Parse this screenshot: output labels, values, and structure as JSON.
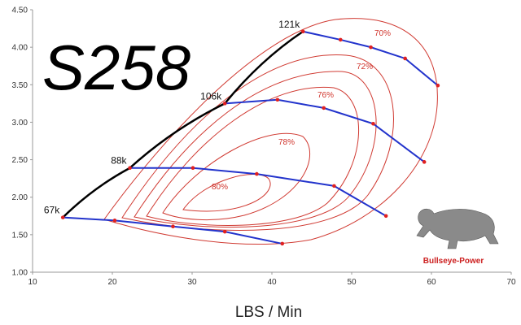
{
  "chart_data": {
    "type": "compressor-map",
    "title": "S258",
    "x_label": "LBS / Min",
    "logo_text": "Bullseye-Power",
    "xlim": [
      10,
      70
    ],
    "xticks": [
      10,
      20,
      30,
      40,
      50,
      60,
      70
    ],
    "ylim": [
      1,
      4.5
    ],
    "yticks": [
      {
        "value": 1,
        "label": "1.00"
      },
      {
        "value": 1.5,
        "label": "1.50"
      },
      {
        "value": 2,
        "label": "2.00"
      },
      {
        "value": 2.5,
        "label": "2.50"
      },
      {
        "value": 3,
        "label": "3.00"
      },
      {
        "value": 3.5,
        "label": "3.50"
      },
      {
        "value": 4,
        "label": "4.00"
      },
      {
        "value": 4.5,
        "label": "4.50"
      }
    ],
    "line_color": "#2233cc",
    "point_color": "#e02020",
    "surge_color": "#000000",
    "series": [
      {
        "name": "67k",
        "x": [
          13.8,
          20.3,
          27.6,
          34.1,
          41.3
        ],
        "y": [
          1.73,
          1.69,
          1.61,
          1.54,
          1.38
        ]
      },
      {
        "name": "88k",
        "x": [
          22.2,
          30.1,
          38.1,
          47.8,
          54.3
        ],
        "y": [
          2.39,
          2.39,
          2.31,
          2.15,
          1.75
        ]
      },
      {
        "name": "106k",
        "x": [
          34.1,
          40.7,
          46.5,
          52.7,
          59.1
        ],
        "y": [
          3.25,
          3.3,
          3.19,
          2.98,
          2.47
        ]
      },
      {
        "name": "121k",
        "x": [
          43.9,
          48.6,
          52.4,
          56.7,
          60.8
        ],
        "y": [
          4.21,
          4.1,
          4.0,
          3.85,
          3.49
        ]
      }
    ],
    "efficiency_labels": [
      "80%",
      "78%",
      "76%",
      "72%",
      "70%"
    ]
  }
}
